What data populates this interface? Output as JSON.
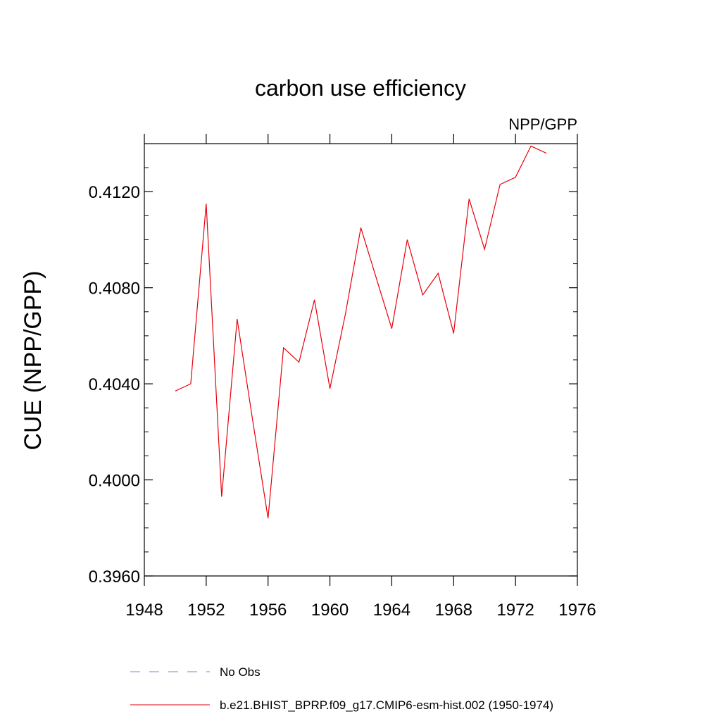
{
  "chart_data": {
    "type": "line",
    "title": "carbon use efficiency",
    "subtitle": "NPP/GPP",
    "xlabel": "",
    "ylabel": "CUE  (NPP/GPP)",
    "xlim": [
      1948,
      1976
    ],
    "ylim": [
      0.396,
      0.414
    ],
    "x_ticks": [
      1948,
      1952,
      1956,
      1960,
      1964,
      1968,
      1972,
      1976
    ],
    "x_tick_labels": [
      "1948",
      "1952",
      "1956",
      "1960",
      "1964",
      "1968",
      "1972",
      "1976"
    ],
    "y_ticks": [
      0.396,
      0.4,
      0.404,
      0.408,
      0.412
    ],
    "y_tick_labels": [
      "0.3960",
      "0.4000",
      "0.4040",
      "0.4080",
      "0.4120"
    ],
    "grid": false,
    "legend_position": "bottom",
    "series": [
      {
        "name": "No Obs",
        "color": "#8080c8",
        "dash": "dashed",
        "x": [],
        "y": []
      },
      {
        "name": "b.e21.BHIST_BPRP.f09_g17.CMIP6-esm-hist.002 (1950-1974)",
        "color": "#e8000b",
        "dash": "solid",
        "x": [
          1950,
          1951,
          1952,
          1953,
          1954,
          1955,
          1956,
          1957,
          1958,
          1959,
          1960,
          1961,
          1962,
          1963,
          1964,
          1965,
          1966,
          1967,
          1968,
          1969,
          1970,
          1971,
          1972,
          1973,
          1974
        ],
        "y": [
          0.4037,
          0.404,
          0.4115,
          0.3993,
          0.4067,
          0.4025,
          0.3984,
          0.4055,
          0.4049,
          0.4075,
          0.4038,
          0.4069,
          0.4105,
          0.4084,
          0.4063,
          0.41,
          0.4077,
          0.4086,
          0.4061,
          0.4117,
          0.4096,
          0.4123,
          0.4126,
          0.4139,
          0.4136
        ]
      }
    ]
  }
}
